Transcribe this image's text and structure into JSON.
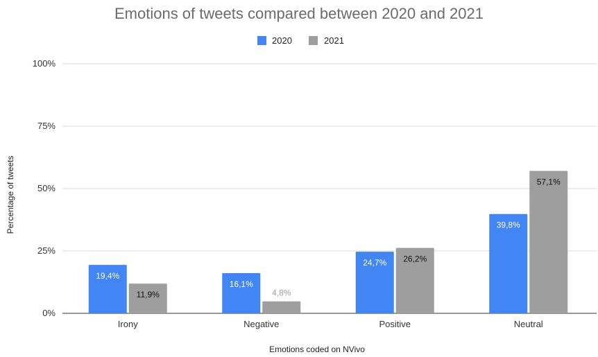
{
  "chart_data": {
    "type": "bar",
    "title": "Emotions of tweets compared between 2020 and 2021",
    "xlabel": "Emotions coded on NVivo",
    "ylabel": "Percentage of tweets",
    "categories": [
      "Irony",
      "Negative",
      "Positive",
      "Neutral"
    ],
    "series": [
      {
        "name": "2020",
        "color": "#4285F4",
        "values": [
          19.4,
          16.1,
          24.7,
          39.8
        ],
        "labels": [
          "19,4%",
          "16,1%",
          "24,7%",
          "39,8%"
        ]
      },
      {
        "name": "2021",
        "color": "#9E9E9E",
        "values": [
          11.9,
          4.8,
          26.2,
          57.1
        ],
        "labels": [
          "11,9%",
          "4,8%",
          "26,2%",
          "57,1%"
        ]
      }
    ],
    "ylim": [
      0,
      100
    ],
    "yticks": [
      0,
      25,
      50,
      75,
      100
    ],
    "ytick_labels": [
      "0%",
      "25%",
      "50%",
      "75%",
      "100%"
    ],
    "grid": true,
    "legend_position": "top-center"
  }
}
